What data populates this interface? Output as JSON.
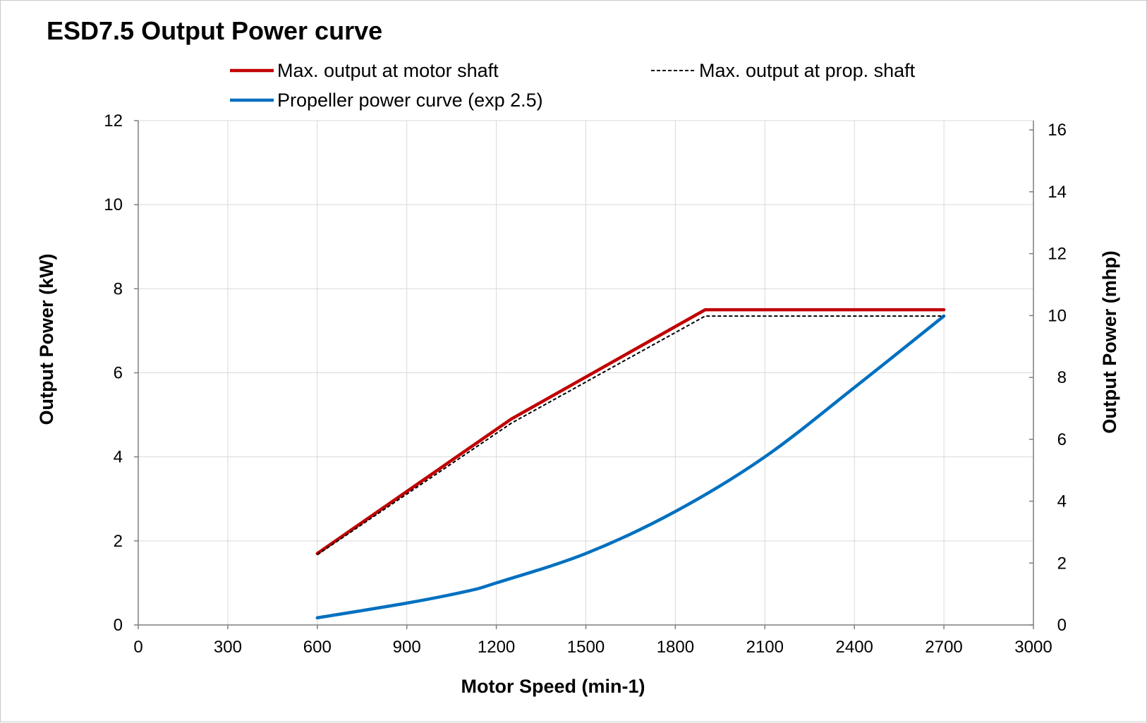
{
  "chart_data": {
    "type": "line",
    "title": "ESD7.5 Output Power curve",
    "xlabel": "Motor Speed (min-1)",
    "ylabel": "Output Power (kW)",
    "y2label": "Output Power (mhp)",
    "xlim": [
      0,
      3000
    ],
    "ylim": [
      0,
      12
    ],
    "y2lim": [
      0,
      16.3
    ],
    "xticks": [
      0,
      300,
      600,
      900,
      1200,
      1500,
      1800,
      2100,
      2400,
      2700,
      3000
    ],
    "yticks": [
      0,
      2,
      4,
      6,
      8,
      10,
      12
    ],
    "y2ticks": [
      0,
      2,
      4,
      6,
      8,
      10,
      12,
      14,
      16
    ],
    "grid": true,
    "legend_position": "top",
    "series": [
      {
        "name": "Max. output at motor shaft",
        "color": "#c00000",
        "style": "solid",
        "x": [
          600,
          1250,
          1900,
          2700
        ],
        "values": [
          1.7,
          4.9,
          7.5,
          7.5
        ]
      },
      {
        "name": "Max. output at prop. shaft",
        "color": "#000000",
        "style": "dashed",
        "x": [
          600,
          1250,
          1900,
          2700
        ],
        "values": [
          1.67,
          4.8,
          7.35,
          7.35
        ]
      },
      {
        "name": "Propeller power curve (exp 2.5)",
        "color": "#0070c0",
        "style": "solid",
        "x": [
          600,
          900,
          1100,
          1200,
          1500,
          1800,
          2100,
          2400,
          2700
        ],
        "values": [
          0.17,
          0.52,
          0.8,
          1.0,
          1.7,
          2.7,
          4.0,
          5.65,
          7.35
        ]
      }
    ]
  }
}
